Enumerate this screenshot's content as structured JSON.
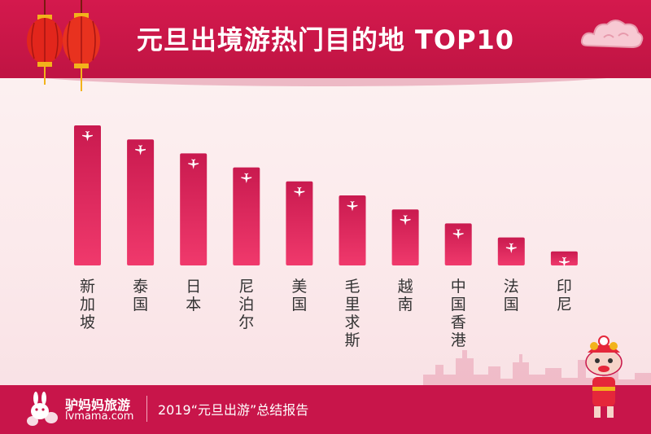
{
  "header": {
    "title": "元旦出境游热门目的地 TOP10"
  },
  "colors": {
    "primary": "#c8154a",
    "bar_top": "#c91a4f",
    "bar_bottom": "#f0396c",
    "background": "#fbeff0"
  },
  "chart_data": {
    "type": "bar",
    "title": "元旦出境游热门目的地 TOP10",
    "xlabel": "",
    "ylabel": "",
    "categories": [
      "新加坡",
      "泰国",
      "日本",
      "尼泊尔",
      "美国",
      "毛里求斯",
      "越南",
      "中国香港",
      "法国",
      "印尼"
    ],
    "values": [
      10,
      9,
      8,
      7,
      6,
      5,
      4,
      3,
      2,
      1
    ],
    "ylim": [
      0,
      10
    ],
    "grid": false,
    "legend": "none",
    "bar_icon": "airplane-icon"
  },
  "footer": {
    "brand": "驴妈妈旅游",
    "url": "lvmama.com",
    "report": "2019“元旦出游”总结报告"
  }
}
